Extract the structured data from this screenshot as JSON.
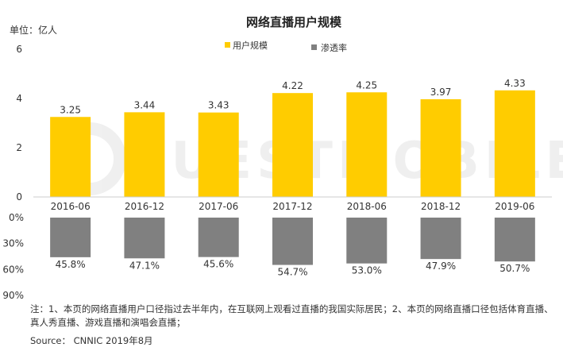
{
  "chart_data": {
    "type": "bar",
    "title": "网络直播用户规模",
    "unit_label": "单位：亿人",
    "legend_position": "top-center",
    "categories": [
      "2016-06",
      "2016-12",
      "2017-06",
      "2017-12",
      "2018-06",
      "2018-12",
      "2019-06"
    ],
    "series": [
      {
        "name": "用户规模",
        "color": "#FFCC00",
        "values": [
          3.25,
          3.44,
          3.43,
          4.22,
          4.25,
          3.97,
          4.33
        ],
        "labels": [
          "3.25",
          "3.44",
          "3.43",
          "4.22",
          "4.25",
          "3.97",
          "4.33"
        ],
        "yticks": [
          "0",
          "2",
          "4",
          "6"
        ],
        "ylim": [
          0,
          6
        ]
      },
      {
        "name": "渗透率",
        "color": "#808080",
        "values": [
          45.8,
          47.1,
          45.6,
          54.7,
          53.0,
          47.9,
          50.7
        ],
        "labels": [
          "45.8%",
          "47.1%",
          "45.6%",
          "54.7%",
          "53.0%",
          "47.9%",
          "50.7%"
        ],
        "yticks": [
          "0%",
          "30%",
          "60%",
          "90%"
        ],
        "ylim": [
          0,
          90
        ],
        "direction": "downward"
      }
    ],
    "grid": false
  },
  "note": "注：1、本页的网络直播用户口径指过去半年内，在互联网上观看过直播的我国实际居民；2、本页的网络直播口径包括体育直播、真人秀直播、游戏直播和演唱会直播；",
  "source": "Source： CNNIC 2019年8月"
}
